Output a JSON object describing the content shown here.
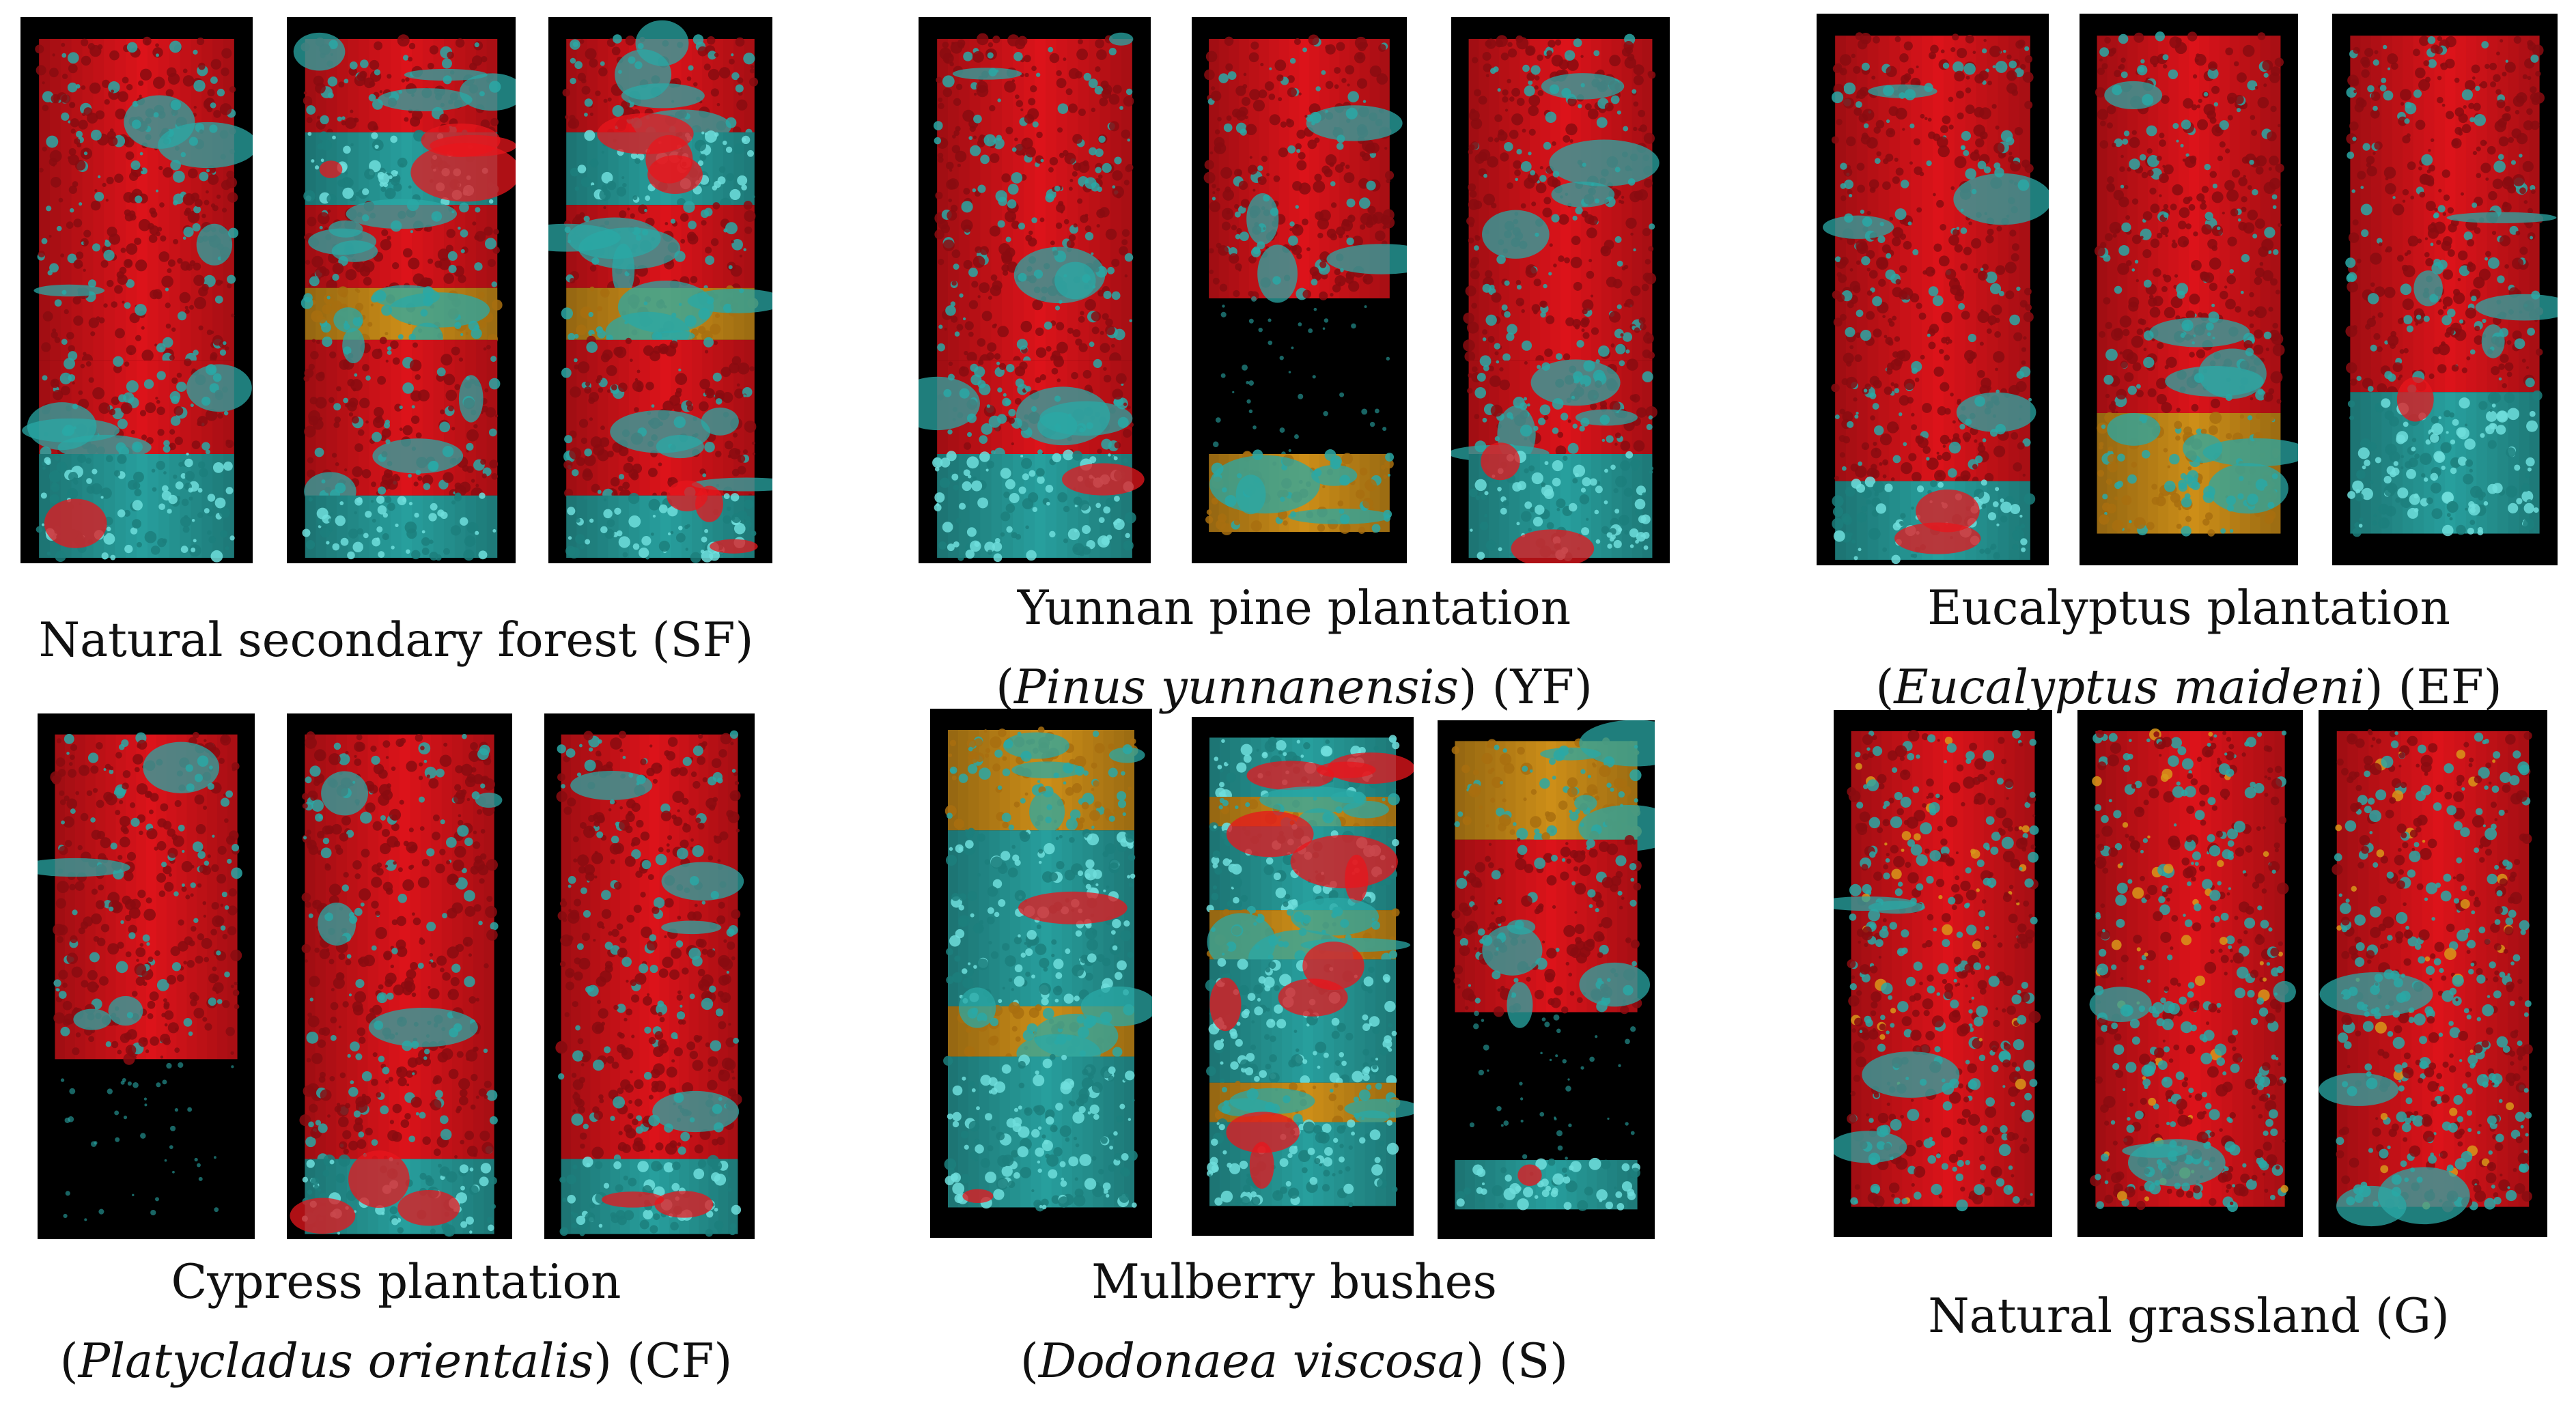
{
  "colors": {
    "background": "#000000",
    "solid": "#e8151c",
    "pores": "#2aa8a6",
    "organic": "#d8961a"
  },
  "panels": [
    {
      "id": "SF",
      "caption_line1": "Natural secondary forest (SF)",
      "caption_line2_pre": "",
      "caption_line2_italic": "",
      "caption_line2_post": ""
    },
    {
      "id": "YF",
      "caption_line1": "Yunnan pine plantation",
      "caption_line2_pre": "(",
      "caption_line2_italic": "Pinus yunnanensis",
      "caption_line2_post": ") (YF)"
    },
    {
      "id": "EF",
      "caption_line1": "Eucalyptus plantation",
      "caption_line2_pre": "(",
      "caption_line2_italic": "Eucalyptus maideni",
      "caption_line2_post": ") (EF)"
    },
    {
      "id": "CF",
      "caption_line1": "Cypress plantation",
      "caption_line2_pre": "(",
      "caption_line2_italic": "Platycladus orientalis",
      "caption_line2_post": ") (CF)"
    },
    {
      "id": "S",
      "caption_line1": "Mulberry bushes",
      "caption_line2_pre": "(",
      "caption_line2_italic": "Dodonaea viscosa",
      "caption_line2_post": ") (S)"
    },
    {
      "id": "G",
      "caption_line1": "Natural grassland (G)",
      "caption_line2_pre": "",
      "caption_line2_italic": "",
      "caption_line2_post": ""
    }
  ]
}
